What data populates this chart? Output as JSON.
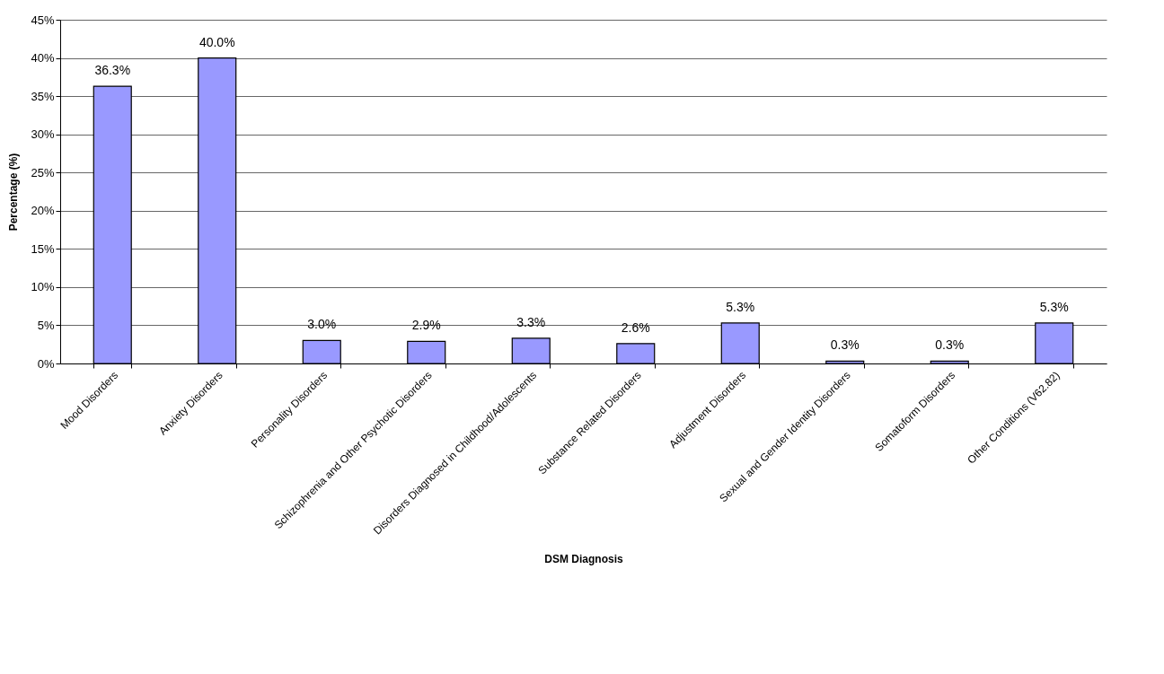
{
  "chart_data": {
    "type": "bar",
    "xlabel": "DSM Diagnosis",
    "ylabel": "Percentage (%)",
    "categories": [
      "Mood Disorders",
      "Anxiety Disorders",
      "Personality Disorders",
      "Schizophrenia and Other Psychotic Disorders",
      "Disorders Diagnosed in Childhood/Adolescents",
      "Substance Related Disorders",
      "Adjustment Disorders",
      "Sexual and Gender Identity Disorders",
      "Somatoform Disorders",
      "Other Conditions (V62.82)"
    ],
    "values": [
      36.3,
      40.0,
      3.0,
      2.9,
      3.3,
      2.6,
      5.3,
      0.3,
      0.3,
      5.3
    ],
    "value_labels": [
      "36.3%",
      "40.0%",
      "3.0%",
      "2.9%",
      "3.3%",
      "2.6%",
      "5.3%",
      "0.3%",
      "0.3%",
      "5.3%"
    ],
    "color": "#9999ff",
    "ylim": [
      0,
      45
    ],
    "yticks": [
      {
        "value": 0,
        "label": "0%"
      },
      {
        "value": 5,
        "label": "5%"
      },
      {
        "value": 10,
        "label": "10%"
      },
      {
        "value": 15,
        "label": "15%"
      },
      {
        "value": 20,
        "label": "20%"
      },
      {
        "value": 25,
        "label": "25%"
      },
      {
        "value": 30,
        "label": "30%"
      },
      {
        "value": 35,
        "label": "35%"
      },
      {
        "value": 40,
        "label": "40%"
      },
      {
        "value": 45,
        "label": "45%"
      }
    ],
    "grid": "y"
  }
}
